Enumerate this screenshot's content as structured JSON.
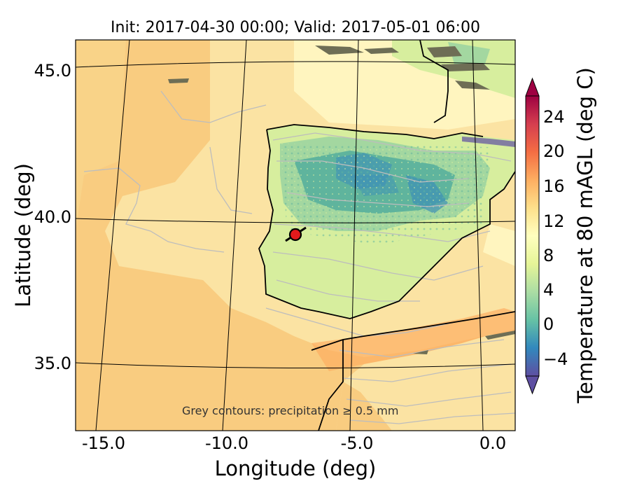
{
  "title": "Init: 2017-04-30 00:00; Valid: 2017-05-01 06:00",
  "xlabel": "Longitude (deg)",
  "ylabel": "Latitude (deg)",
  "colorbar_label": "Temperature at 80 mAGL (deg C)",
  "annotation": "Grey contours: precipitation ≥ 0.5 mm",
  "x_ticks": [
    "-15.0",
    "-10.0",
    "-5.0",
    "0.0"
  ],
  "y_ticks": [
    "45.0",
    "40.0",
    "35.0"
  ],
  "colorbar_ticks": [
    "24",
    "20",
    "16",
    "12",
    "8",
    "4",
    "0",
    "−4"
  ],
  "colorbar_colors": [
    "#5e4fa2",
    "#3288bd",
    "#66c2a5",
    "#abdda4",
    "#e6f598",
    "#ffffbf",
    "#fee08b",
    "#fdae61",
    "#f46d43",
    "#d53e4f",
    "#9e0142"
  ],
  "map_colors": {
    "sea_warm": "#f9cc80",
    "sea_mid": "#fbe3a3",
    "sea_cool": "#fff5bf",
    "land_mild": "#d7ee9e",
    "land_cool": "#a3d7a0",
    "land_cold": "#5fb49d",
    "land_coldest": "#3d8fb7",
    "precip_contour": "#bdbdbd",
    "marker": "#e41a1c"
  },
  "marker": {
    "lon": -7.7,
    "lat": 39.4,
    "description": "site marker"
  }
}
